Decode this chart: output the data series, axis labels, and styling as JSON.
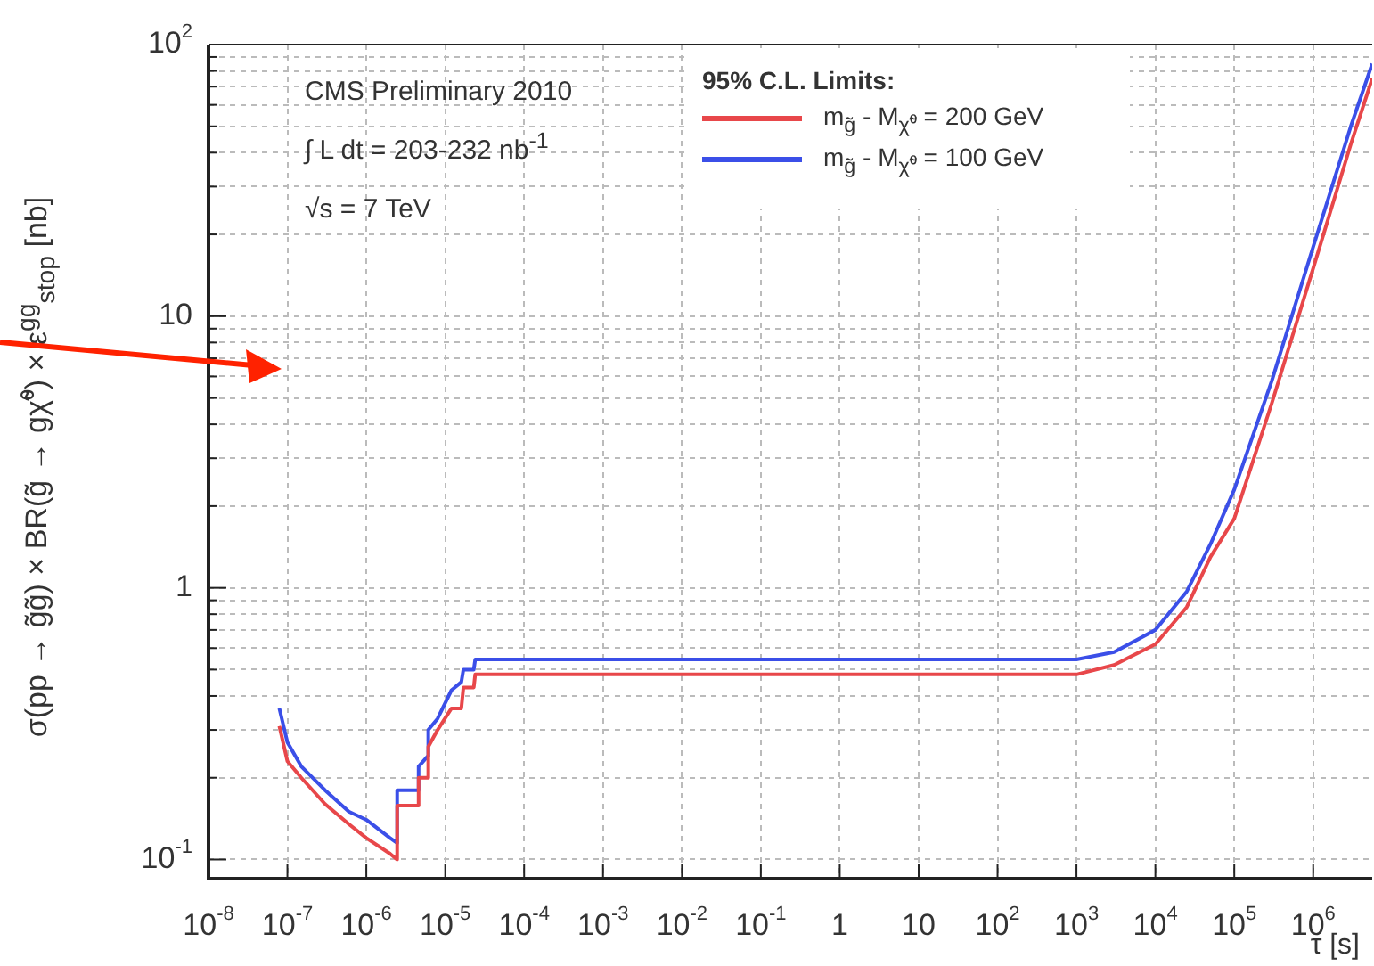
{
  "chart_data": {
    "type": "line",
    "xlabel": "τ [s]",
    "ylabel": "σ(pp → g̃g̃) × BR(g̃ → gχ̃⁰) × ε$^{gg}$$_{stop}$ [nb]",
    "legend_title": "95% C.L. Limits:",
    "annotations": [
      "CMS Preliminary 2010",
      "∫ L dt = 203-232 nb$^{-1}$",
      "√s = 7 TeV"
    ],
    "log": "xy",
    "grid": true,
    "legend": "top right",
    "line_style": "solid",
    "marker": "none",
    "xlim": [
      1e-08,
      5600000.0
    ],
    "xticks": [
      {
        "value": 1e-08,
        "label": "10$^{-8}$"
      },
      {
        "value": 1e-07,
        "label": "10$^{-7}$"
      },
      {
        "value": 1e-06,
        "label": "10$^{-6}$"
      },
      {
        "value": 1e-05,
        "label": "10$^{-5}$"
      },
      {
        "value": 0.0001,
        "label": "10$^{-4}$"
      },
      {
        "value": 0.001,
        "label": "10$^{-3}$"
      },
      {
        "value": 0.01,
        "label": "10$^{-2}$"
      },
      {
        "value": 0.1,
        "label": "10$^{-1}$"
      },
      1,
      10,
      {
        "value": 100,
        "label": "10$^{2}$"
      },
      {
        "value": 1000,
        "label": "10$^{3}$"
      },
      {
        "value": 10000,
        "label": "10$^{4}$"
      },
      {
        "value": 100000,
        "label": "10$^{5}$"
      },
      {
        "value": 1000000,
        "label": "10$^{6}$"
      }
    ],
    "ylim": [
      0.085,
      100
    ],
    "yticks": [
      {
        "value": 0.1,
        "label": "10$^{-1}$"
      },
      {
        "value": 0.2,
        "label": null
      },
      {
        "value": 0.3,
        "label": null
      },
      {
        "value": 0.4,
        "label": null
      },
      {
        "value": 0.5,
        "label": null
      },
      {
        "value": 0.6,
        "label": null
      },
      {
        "value": 0.7,
        "label": null
      },
      {
        "value": 0.8,
        "label": null
      },
      {
        "value": 0.9,
        "label": null
      },
      1,
      {
        "value": 2,
        "label": null
      },
      {
        "value": 3,
        "label": null
      },
      {
        "value": 4,
        "label": null
      },
      {
        "value": 5,
        "label": null
      },
      {
        "value": 6,
        "label": null
      },
      {
        "value": 7,
        "label": null
      },
      {
        "value": 8,
        "label": null
      },
      {
        "value": 9,
        "label": null
      },
      10,
      {
        "value": 20,
        "label": null
      },
      {
        "value": 30,
        "label": null
      },
      {
        "value": 40,
        "label": null
      },
      {
        "value": 50,
        "label": null
      },
      {
        "value": 60,
        "label": null
      },
      {
        "value": 70,
        "label": null
      },
      {
        "value": 80,
        "label": null
      },
      {
        "value": 90,
        "label": null
      },
      {
        "value": 100,
        "label": "10$^{2}$"
      }
    ],
    "x": [
      7.9e-08,
      1e-07,
      1.5e-07,
      3e-07,
      6e-07,
      1e-06,
      2e-06,
      2.45e-06,
      2.46e-06,
      4.5e-06,
      4.6e-06,
      6e-06,
      6.1e-06,
      8e-06,
      1.2e-05,
      1.6e-05,
      1.7e-05,
      2.3e-05,
      2.4e-05,
      1000,
      3000,
      10000,
      25000,
      50000,
      100000,
      300000,
      1000000,
      3000000,
      5600000
    ],
    "series": [
      {
        "name": "m$_{g̃}$ - M$_{χ̃⁰}$ = 200 GeV",
        "color": "#e8474a",
        "values": [
          0.31,
          0.23,
          0.2,
          0.16,
          0.135,
          0.12,
          0.105,
          0.1,
          0.158,
          0.158,
          0.2,
          0.2,
          0.26,
          0.3,
          0.36,
          0.36,
          0.43,
          0.43,
          0.48,
          0.48,
          0.52,
          0.62,
          0.85,
          1.3,
          1.8,
          4.8,
          15,
          43,
          75
        ]
      },
      {
        "name": "m$_{g̃}$ - M$_{χ̃⁰}$ = 100 GeV",
        "color": "#3b4fe8",
        "values": [
          0.36,
          0.27,
          0.22,
          0.18,
          0.15,
          0.14,
          0.12,
          0.115,
          0.18,
          0.18,
          0.22,
          0.24,
          0.3,
          0.33,
          0.42,
          0.45,
          0.5,
          0.5,
          0.545,
          0.545,
          0.58,
          0.7,
          0.97,
          1.45,
          2.3,
          5.8,
          18,
          50,
          85
        ]
      }
    ]
  }
}
